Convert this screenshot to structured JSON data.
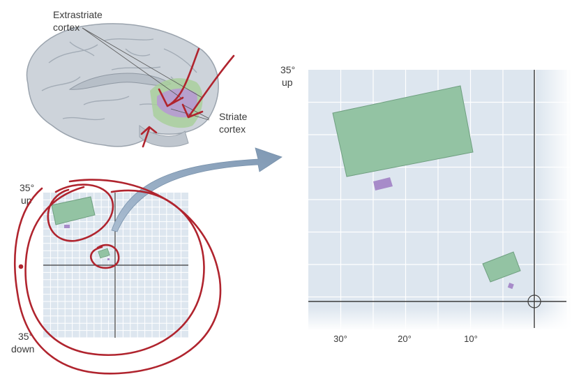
{
  "labels": {
    "extrastriate": [
      "Extrastriate",
      "cortex"
    ],
    "striate": [
      "Striate",
      "cortex"
    ],
    "small_up": [
      "35°",
      "up"
    ],
    "small_down": [
      "35°",
      "down"
    ],
    "large_up": [
      "35°",
      "up"
    ]
  },
  "large_panel": {
    "x_ticks": [
      "30°",
      "20°",
      "10°"
    ]
  },
  "colors": {
    "field_bg": "#dde6ef",
    "grid": "#ffffff",
    "axis": "#3b3b3b",
    "green_rf": "#93c3a3",
    "purple_rf": "#a78bc9",
    "annotation_red": "#b0242e",
    "arrow_blue": "#8fa6bf",
    "brain": "#c9d0d8"
  },
  "icons": [
    "brain-illustration",
    "curved-arrow-icon",
    "fixation-crosshair-icon"
  ]
}
